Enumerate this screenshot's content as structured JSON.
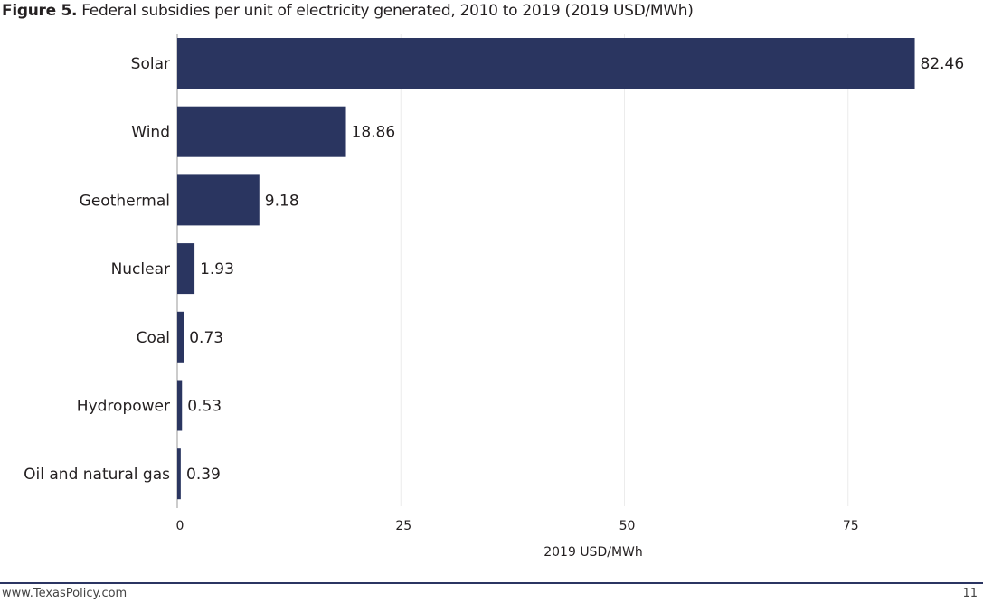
{
  "title": {
    "label": "Figure 5.",
    "text": "Federal subsidies per unit of electricity generated, 2010 to 2019 (2019 USD/MWh)"
  },
  "chart_data": {
    "type": "bar",
    "orientation": "horizontal",
    "categories": [
      "Solar",
      "Wind",
      "Geothermal",
      "Nuclear",
      "Coal",
      "Hydropower",
      "Oil and natural gas"
    ],
    "values": [
      82.46,
      18.86,
      9.18,
      1.93,
      0.73,
      0.53,
      0.39
    ],
    "value_labels": [
      "82.46",
      "18.86",
      "9.18",
      "1.93",
      "0.73",
      "0.53",
      "0.39"
    ],
    "xlabel": "2019 USD/MWh",
    "xticks": [
      "0",
      "25",
      "50",
      "75"
    ],
    "xlim": [
      0,
      85
    ],
    "grid": "vertical",
    "bar_color": "#2a3560"
  },
  "footer": {
    "url": "www.TexasPolicy.com",
    "page": "11"
  }
}
